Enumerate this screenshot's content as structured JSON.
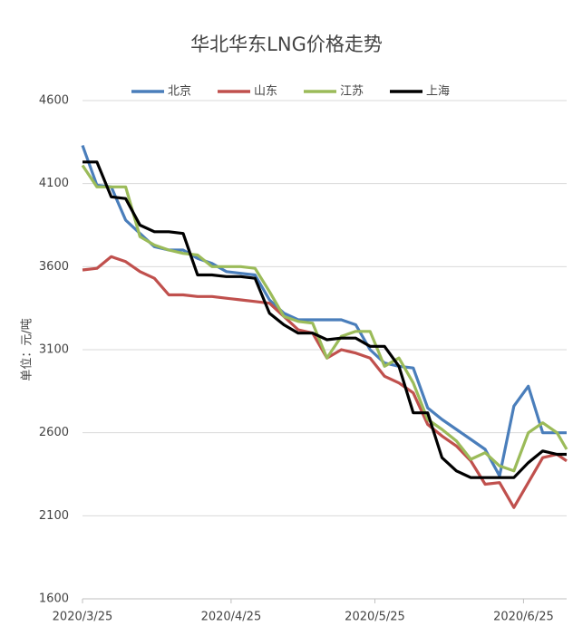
{
  "chart_data": {
    "type": "line",
    "title": "华北华东LNG价格走势",
    "y_label": "单位：元/吨",
    "x": [
      "2020/3/25",
      "2020/3/28",
      "2020/3/31",
      "2020/4/3",
      "2020/4/6",
      "2020/4/9",
      "2020/4/12",
      "2020/4/15",
      "2020/4/18",
      "2020/4/21",
      "2020/4/24",
      "2020/4/27",
      "2020/4/30",
      "2020/5/3",
      "2020/5/6",
      "2020/5/9",
      "2020/5/12",
      "2020/5/15",
      "2020/5/18",
      "2020/5/21",
      "2020/5/24",
      "2020/5/27",
      "2020/5/30",
      "2020/6/2",
      "2020/6/5",
      "2020/6/8",
      "2020/6/11",
      "2020/6/14",
      "2020/6/17",
      "2020/6/20",
      "2020/6/23",
      "2020/6/26",
      "2020/6/29",
      "2020/7/2",
      "2020/7/4"
    ],
    "xlim": [
      "2020/3/25",
      "2020/7/4"
    ],
    "xticks": [
      "2020/3/25",
      "2020/4/25",
      "2020/5/25",
      "2020/6/25"
    ],
    "ylim": [
      1600,
      4600
    ],
    "yticks": [
      1600,
      2100,
      2600,
      3100,
      3600,
      4100,
      4600
    ],
    "grid": true,
    "legend": "top",
    "series": [
      {
        "name": "北京",
        "color": "#4a7ebb",
        "values": [
          4330,
          4090,
          4080,
          3880,
          3800,
          3720,
          3700,
          3700,
          3650,
          3620,
          3570,
          3560,
          3550,
          3400,
          3320,
          3280,
          3280,
          3280,
          3280,
          3250,
          3100,
          3020,
          3000,
          2990,
          2750,
          2680,
          2620,
          2560,
          2500,
          2340,
          2760,
          2880,
          2600,
          2600,
          2600
        ]
      },
      {
        "name": "山东",
        "color": "#c0504d",
        "values": [
          3580,
          3590,
          3660,
          3630,
          3570,
          3530,
          3430,
          3430,
          3420,
          3420,
          3410,
          3400,
          3390,
          3380,
          3300,
          3220,
          3200,
          3050,
          3100,
          3080,
          3050,
          2940,
          2900,
          2840,
          2650,
          2580,
          2520,
          2430,
          2290,
          2300,
          2150,
          2300,
          2450,
          2470,
          2430
        ]
      },
      {
        "name": "江苏",
        "color": "#9bbb59",
        "values": [
          4210,
          4080,
          4080,
          4080,
          3780,
          3730,
          3700,
          3680,
          3670,
          3600,
          3600,
          3600,
          3590,
          3450,
          3300,
          3270,
          3260,
          3050,
          3180,
          3210,
          3210,
          3000,
          3050,
          2900,
          2680,
          2620,
          2550,
          2440,
          2480,
          2400,
          2370,
          2600,
          2660,
          2600,
          2500
        ]
      },
      {
        "name": "上海",
        "color": "#000000",
        "values": [
          4230,
          4230,
          4020,
          4010,
          3850,
          3810,
          3810,
          3800,
          3550,
          3550,
          3540,
          3540,
          3530,
          3320,
          3250,
          3200,
          3200,
          3160,
          3170,
          3170,
          3120,
          3120,
          3000,
          2720,
          2720,
          2450,
          2370,
          2330,
          2330,
          2330,
          2330,
          2420,
          2490,
          2470,
          2470
        ]
      }
    ]
  }
}
